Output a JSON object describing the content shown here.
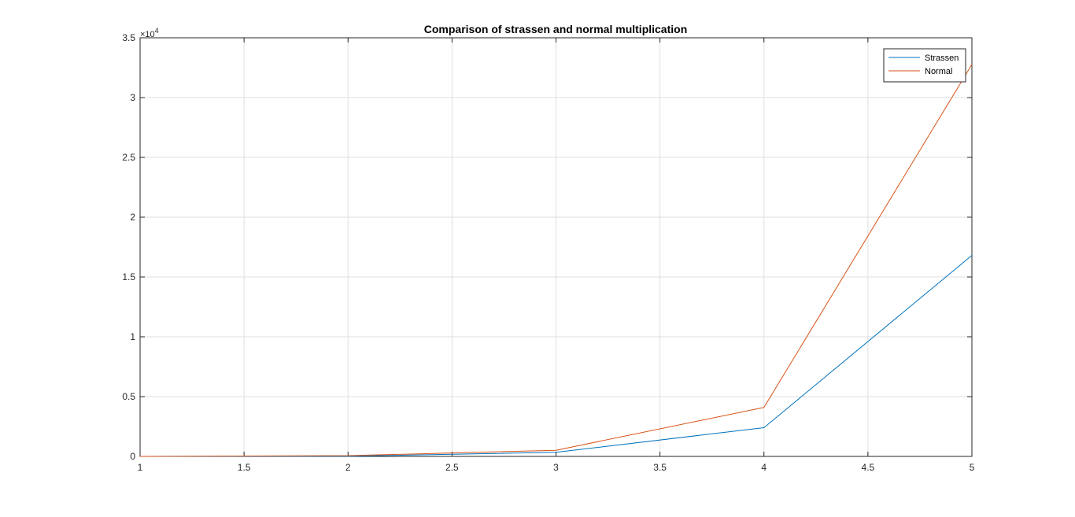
{
  "chart_data": {
    "type": "line",
    "title": "Comparison of strassen and normal multiplication",
    "xlabel": "",
    "ylabel": "",
    "x": [
      1,
      2,
      3,
      4,
      5
    ],
    "series": [
      {
        "name": "Strassen",
        "values": [
          1,
          15,
          343,
          2401,
          16807
        ],
        "color": "#0072BD"
      },
      {
        "name": "Normal",
        "values": [
          1,
          64,
          512,
          4096,
          32768
        ],
        "color": "#D95319"
      }
    ],
    "xlim": [
      1,
      5
    ],
    "ylim": [
      0,
      35000
    ],
    "xticks": [
      1,
      1.5,
      2,
      2.5,
      3,
      3.5,
      4,
      4.5,
      5
    ],
    "xtick_labels": [
      "1",
      "1.5",
      "2",
      "2.5",
      "3",
      "3.5",
      "4",
      "4.5",
      "5"
    ],
    "yticks": [
      0,
      5000,
      10000,
      15000,
      20000,
      25000,
      30000,
      35000
    ],
    "ytick_labels": [
      "0",
      "0.5",
      "1",
      "1.5",
      "2",
      "2.5",
      "3",
      "3.5"
    ],
    "y_exponent_label": {
      "base": "×10",
      "exponent": "4"
    },
    "grid": true,
    "legend_position": "top-right"
  }
}
